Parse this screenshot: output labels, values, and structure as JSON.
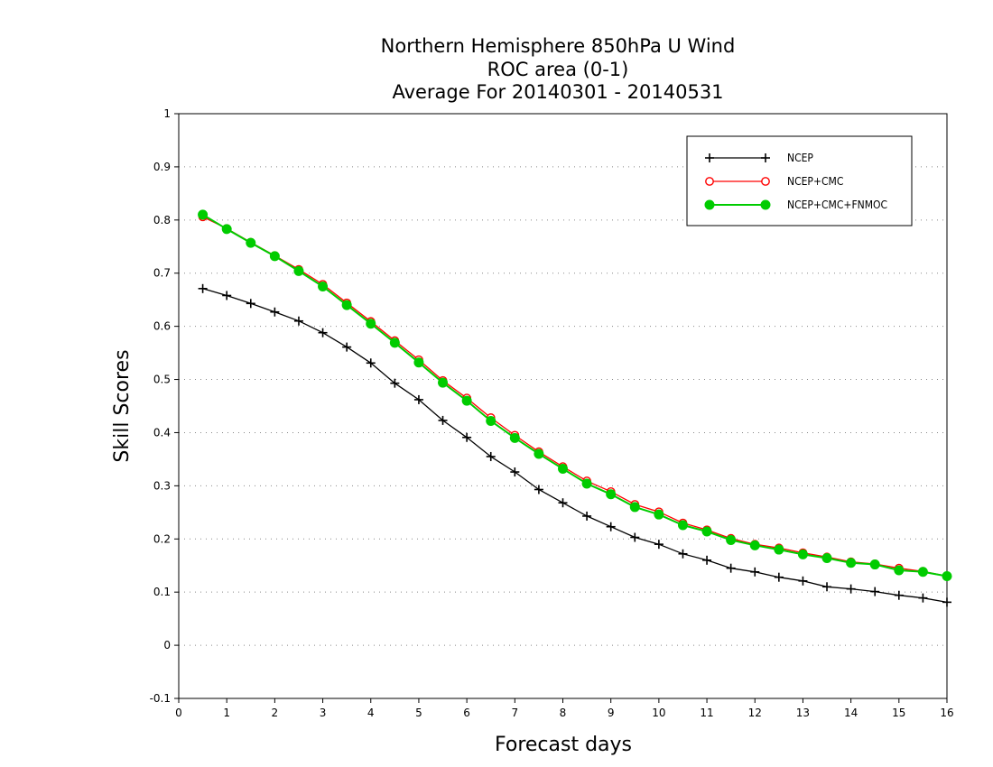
{
  "chart_data": {
    "type": "line",
    "title": [
      "Northern Hemisphere 850hPa U Wind",
      "ROC area (0-1)",
      "Average For 20140301 - 20140531"
    ],
    "xlabel": "Forecast days",
    "ylabel": "Skill Scores",
    "xlim": [
      0,
      16
    ],
    "ylim": [
      -0.1,
      1
    ],
    "x_ticks": [
      "0",
      "1",
      "2",
      "3",
      "4",
      "5",
      "6",
      "7",
      "8",
      "9",
      "10",
      "11",
      "12",
      "13",
      "14",
      "15",
      "16"
    ],
    "y_ticks": [
      "-0.1",
      "0",
      "0.1",
      "0.2",
      "0.3",
      "0.4",
      "0.5",
      "0.6",
      "0.7",
      "0.8",
      "0.9",
      "1"
    ],
    "grid": "horizontal dotted",
    "legend_position": "top-right",
    "x": [
      0.5,
      1,
      1.5,
      2,
      2.5,
      3,
      3.5,
      4,
      4.5,
      5,
      5.5,
      6,
      6.5,
      7,
      7.5,
      8,
      8.5,
      9,
      9.5,
      10,
      10.5,
      11,
      11.5,
      12,
      12.5,
      13,
      13.5,
      14,
      14.5,
      15,
      15.5,
      16
    ],
    "series": [
      {
        "name": "NCEP",
        "color": "#000000",
        "marker": "plus",
        "values": [
          0.671,
          0.658,
          0.643,
          0.627,
          0.61,
          0.588,
          0.561,
          0.531,
          0.493,
          0.462,
          0.423,
          0.391,
          0.355,
          0.326,
          0.293,
          0.268,
          0.243,
          0.223,
          0.203,
          0.19,
          0.172,
          0.16,
          0.145,
          0.138,
          0.128,
          0.121,
          0.11,
          0.106,
          0.101,
          0.094,
          0.089,
          0.081
        ]
      },
      {
        "name": "NCEP+CMC",
        "color": "#ff0000",
        "marker": "open-circle",
        "values": [
          0.806,
          0.784,
          0.758,
          0.733,
          0.707,
          0.679,
          0.644,
          0.609,
          0.573,
          0.537,
          0.498,
          0.465,
          0.428,
          0.395,
          0.364,
          0.336,
          0.309,
          0.289,
          0.265,
          0.251,
          0.23,
          0.217,
          0.201,
          0.19,
          0.183,
          0.174,
          0.166,
          0.157,
          0.153,
          0.145,
          0.139,
          0.13
        ]
      },
      {
        "name": "NCEP+CMC+FNMOC",
        "color": "#00cc00",
        "marker": "filled-circle",
        "values": [
          0.81,
          0.783,
          0.757,
          0.732,
          0.704,
          0.675,
          0.64,
          0.605,
          0.569,
          0.532,
          0.494,
          0.46,
          0.422,
          0.39,
          0.36,
          0.332,
          0.304,
          0.284,
          0.26,
          0.246,
          0.226,
          0.214,
          0.198,
          0.188,
          0.18,
          0.171,
          0.164,
          0.155,
          0.152,
          0.141,
          0.138,
          0.13
        ]
      }
    ]
  }
}
